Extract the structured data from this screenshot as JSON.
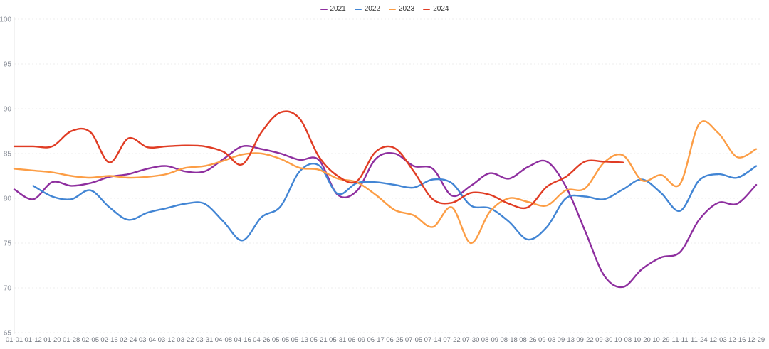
{
  "chart_data": {
    "type": "line",
    "title": "",
    "xlabel": "",
    "ylabel": "",
    "ylim": [
      65,
      100
    ],
    "yticks": [
      100,
      95,
      90,
      85,
      80,
      75,
      70,
      65
    ],
    "grid": true,
    "grid_style": "dotted",
    "legend_position": "top-center",
    "categories": [
      "01-01",
      "01-12",
      "01-20",
      "01-28",
      "02-05",
      "02-16",
      "02-24",
      "03-04",
      "03-12",
      "03-22",
      "03-31",
      "04-08",
      "04-16",
      "04-26",
      "05-05",
      "05-13",
      "05-21",
      "05-31",
      "06-09",
      "06-17",
      "06-25",
      "07-05",
      "07-14",
      "07-22",
      "07-30",
      "08-09",
      "08-18",
      "08-26",
      "09-03",
      "09-13",
      "09-22",
      "09-30",
      "10-08",
      "10-20",
      "10-29",
      "11-11",
      "11-24",
      "12-03",
      "12-16",
      "12-29"
    ],
    "series": [
      {
        "name": "2021",
        "color": "#8e2f9f",
        "values": [
          81.0,
          79.9,
          81.8,
          81.4,
          81.7,
          82.4,
          82.7,
          83.3,
          83.6,
          83.0,
          83.0,
          84.4,
          85.8,
          85.5,
          85.0,
          84.3,
          84.3,
          80.4,
          80.8,
          84.4,
          85.0,
          83.6,
          83.3,
          80.3,
          81.4,
          82.8,
          82.2,
          83.5,
          84.1,
          81.3,
          76.4,
          71.4,
          70.1,
          72.1,
          73.4,
          74.0,
          77.6,
          79.5,
          79.4,
          81.5
        ]
      },
      {
        "name": "2022",
        "color": "#4285d4",
        "values": [
          null,
          81.4,
          80.2,
          79.9,
          80.9,
          79.0,
          77.6,
          78.4,
          78.9,
          79.4,
          79.4,
          77.4,
          75.3,
          77.9,
          79.1,
          83.0,
          83.7,
          80.5,
          81.7,
          81.8,
          81.5,
          81.2,
          82.1,
          81.7,
          79.2,
          78.9,
          77.4,
          75.4,
          76.8,
          80.0,
          80.2,
          79.9,
          81.0,
          82.1,
          80.6,
          78.6,
          82.0,
          82.7,
          82.3,
          83.6
        ]
      },
      {
        "name": "2023",
        "color": "#fc9d45",
        "values": [
          83.3,
          83.1,
          82.9,
          82.5,
          82.3,
          82.5,
          82.3,
          82.4,
          82.7,
          83.4,
          83.6,
          84.2,
          84.9,
          85.0,
          84.4,
          83.4,
          83.2,
          82.2,
          81.8,
          80.4,
          78.7,
          78.1,
          76.8,
          79.0,
          75.0,
          78.5,
          80.0,
          79.6,
          79.2,
          80.9,
          81.1,
          84.0,
          84.8,
          82.0,
          82.6,
          81.6,
          88.3,
          87.3,
          84.6,
          85.5
        ]
      },
      {
        "name": "2024",
        "color": "#e03c24",
        "values": [
          85.8,
          85.8,
          85.8,
          87.5,
          87.4,
          84.0,
          86.7,
          85.7,
          85.8,
          85.9,
          85.8,
          85.2,
          83.8,
          87.4,
          89.6,
          88.9,
          84.7,
          82.5,
          81.9,
          85.2,
          85.6,
          83.0,
          79.9,
          79.5,
          80.6,
          80.4,
          79.4,
          79.0,
          81.3,
          82.4,
          84.1,
          84.1,
          84.0,
          null,
          null,
          null,
          null,
          null,
          null,
          null
        ]
      }
    ]
  }
}
